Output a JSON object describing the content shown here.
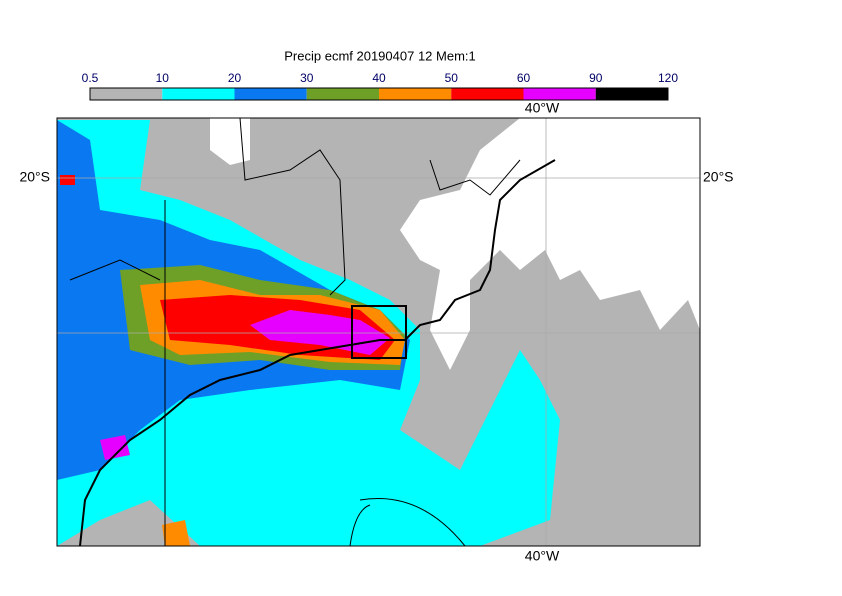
{
  "title": "Precip ecmf 20190407 12 Mem:1",
  "colorbar": {
    "levels": [
      0.5,
      10,
      20,
      30,
      40,
      50,
      60,
      90,
      120
    ],
    "colors": [
      "#b4b4b4",
      "#00ffff",
      "#0a78f0",
      "#6ea028",
      "#ff8c00",
      "#ff0000",
      "#e600ff",
      "#000000"
    ]
  },
  "lon_label": "40°W",
  "lat_label": "20°S"
}
